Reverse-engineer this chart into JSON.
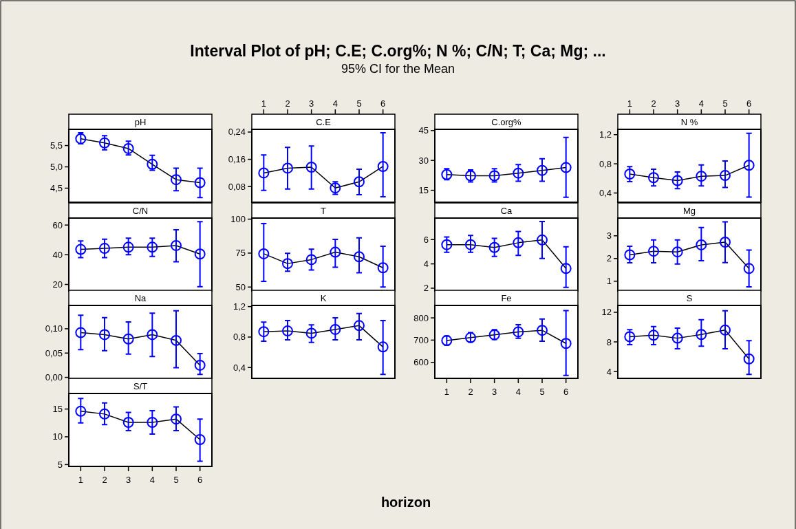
{
  "chart_data": [
    {
      "type": "other",
      "title": "Interval Plot of pH; C.E; C.org%; N %; C/N; T; Ca; Mg; ...",
      "subtitle": "95% CI for the Mean",
      "xlabel": "horizon"
    },
    {
      "type": "line",
      "title": "pH",
      "x": [
        1,
        2,
        3,
        4,
        5,
        6
      ],
      "xlim": [
        0.5,
        6.5
      ],
      "tick_labels": "y",
      "marker": "circle",
      "ylim": [
        4.17,
        5.88
      ],
      "yticks": [
        {
          "value": 4.5,
          "label": "4,5"
        },
        {
          "value": 5,
          "label": "5,0"
        },
        {
          "value": 5.5,
          "label": "5,5"
        }
      ],
      "series": [
        {
          "color": "#0000ff",
          "values": [
            5.66,
            5.56,
            5.43,
            5.06,
            4.7,
            4.63
          ],
          "errors": [
            [
              5.54,
              5.8
            ],
            [
              5.4,
              5.73
            ],
            [
              5.28,
              5.6
            ],
            [
              4.92,
              5.27
            ],
            [
              4.44,
              4.97
            ],
            [
              4.28,
              4.97
            ]
          ]
        }
      ]
    },
    {
      "type": "line",
      "title": "C.E",
      "x": [
        1,
        2,
        3,
        4,
        5,
        6
      ],
      "xlim": [
        0.5,
        6.5
      ],
      "x2lim": [
        0.5,
        6.5
      ],
      "x2ticks": [
        1,
        2,
        3,
        4,
        5,
        6
      ],
      "tick_labels": "y",
      "marker": "circle",
      "ylim": [
        0.034,
        0.248
      ],
      "yticks": [
        {
          "value": 0.08,
          "label": "0,08"
        },
        {
          "value": 0.16,
          "label": "0,16"
        },
        {
          "value": 0.24,
          "label": "0,24"
        }
      ],
      "series": [
        {
          "color": "#0000ff",
          "values": [
            0.12,
            0.134,
            0.137,
            0.076,
            0.094,
            0.139
          ],
          "errors": [
            [
              0.069,
              0.173
            ],
            [
              0.073,
              0.195
            ],
            [
              0.073,
              0.199
            ],
            [
              0.057,
              0.094
            ],
            [
              0.056,
              0.131
            ],
            [
              0.05,
              0.238
            ]
          ]
        }
      ]
    },
    {
      "type": "line",
      "title": "C.org%",
      "x": [
        1,
        2,
        3,
        4,
        5,
        6
      ],
      "xlim": [
        0.5,
        6.5
      ],
      "tick_labels": "y",
      "marker": "circle",
      "ylim": [
        9,
        45.6
      ],
      "yticks": [
        15,
        30,
        45
      ],
      "series": [
        {
          "color": "#0000ff",
          "values": [
            22.9,
            22.3,
            22.3,
            23.6,
            25.0,
            26.4
          ],
          "errors": [
            [
              20.3,
              25.8
            ],
            [
              19.2,
              25.2
            ],
            [
              19.2,
              25.8
            ],
            [
              19.5,
              27.9
            ],
            [
              19.5,
              30.8
            ],
            [
              11.5,
              41.5
            ]
          ]
        }
      ]
    },
    {
      "type": "line",
      "title": "N %",
      "x": [
        1,
        2,
        3,
        4,
        5,
        6
      ],
      "xlim": [
        0.5,
        6.5
      ],
      "x2lim": [
        0.5,
        6.5
      ],
      "x2ticks": [
        1,
        2,
        3,
        4,
        5,
        6
      ],
      "tick_labels": "y",
      "marker": "circle",
      "ylim": [
        0.273,
        1.273
      ],
      "yticks": [
        {
          "value": 0.4,
          "label": "0,4"
        },
        {
          "value": 0.8,
          "label": "0,8"
        },
        {
          "value": 1.2,
          "label": "1,2"
        }
      ],
      "series": [
        {
          "color": "#0000ff",
          "values": [
            0.66,
            0.61,
            0.57,
            0.63,
            0.64,
            0.78
          ],
          "errors": [
            [
              0.555,
              0.762
            ],
            [
              0.498,
              0.727
            ],
            [
              0.46,
              0.689
            ],
            [
              0.498,
              0.784
            ],
            [
              0.475,
              0.838
            ],
            [
              0.343,
              1.219
            ]
          ]
        }
      ]
    },
    {
      "type": "line",
      "title": "C/N",
      "x": [
        1,
        2,
        3,
        4,
        5,
        6
      ],
      "xlim": [
        0.5,
        6.5
      ],
      "tick_labels": "y",
      "marker": "circle",
      "ylim": [
        15.6,
        64.7
      ],
      "yticks": [
        20,
        40,
        60
      ],
      "series": [
        {
          "color": "#0000ff",
          "values": [
            43.6,
            44.3,
            45.1,
            45.1,
            46.2,
            40.5
          ],
          "errors": [
            [
              38.1,
              49.3
            ],
            [
              38.1,
              50.4
            ],
            [
              40,
              51.2
            ],
            [
              38.9,
              51.2
            ],
            [
              35.3,
              56.8
            ],
            [
              18.5,
              62.3
            ]
          ]
        }
      ]
    },
    {
      "type": "line",
      "title": "T",
      "x": [
        1,
        2,
        3,
        4,
        5,
        6
      ],
      "xlim": [
        0.5,
        6.5
      ],
      "tick_labels": "y",
      "marker": "circle",
      "ylim": [
        47.1,
        100.8
      ],
      "yticks": [
        50,
        75,
        100
      ],
      "series": [
        {
          "color": "#0000ff",
          "values": [
            74.5,
            67.3,
            70.2,
            75.7,
            72.3,
            64.2
          ],
          "errors": [
            [
              54.2,
              96.7
            ],
            [
              61.7,
              74.8
            ],
            [
              62.6,
              77.9
            ],
            [
              64.6,
              85.1
            ],
            [
              60.5,
              86.2
            ],
            [
              50,
              80
            ]
          ]
        }
      ]
    },
    {
      "type": "line",
      "title": "Ca",
      "x": [
        1,
        2,
        3,
        4,
        5,
        6
      ],
      "xlim": [
        0.5,
        6.5
      ],
      "tick_labels": "y",
      "marker": "circle",
      "ylim": [
        1.77,
        7.77
      ],
      "yticks": [
        2,
        4,
        6
      ],
      "series": [
        {
          "color": "#0000ff",
          "values": [
            5.58,
            5.58,
            5.35,
            5.74,
            5.97,
            3.62
          ],
          "errors": [
            [
              4.95,
              6.21
            ],
            [
              4.95,
              6.34
            ],
            [
              4.61,
              6.1
            ],
            [
              4.7,
              6.66
            ],
            [
              4.45,
              7.49
            ],
            [
              2.07,
              5.4
            ]
          ]
        }
      ]
    },
    {
      "type": "line",
      "title": "Mg",
      "x": [
        1,
        2,
        3,
        4,
        5,
        6
      ],
      "xlim": [
        0.5,
        6.5
      ],
      "tick_labels": "y",
      "marker": "circle",
      "ylim": [
        0.57,
        3.78
      ],
      "yticks": [
        1,
        2,
        3
      ],
      "series": [
        {
          "color": "#0000ff",
          "values": [
            2.16,
            2.32,
            2.29,
            2.6,
            2.72,
            1.56
          ],
          "errors": [
            [
              1.81,
              2.54
            ],
            [
              1.81,
              2.82
            ],
            [
              1.76,
              2.82
            ],
            [
              1.9,
              3.36
            ],
            [
              1.82,
              3.61
            ],
            [
              0.75,
              2.37
            ]
          ]
        }
      ]
    },
    {
      "type": "line",
      "title": "Na",
      "x": [
        1,
        2,
        3,
        4,
        5,
        6
      ],
      "xlim": [
        0.5,
        6.5
      ],
      "tick_labels": "y",
      "marker": "circle",
      "ylim": [
        -0.002,
        0.148
      ],
      "yticks": [
        {
          "value": 0,
          "label": "0,00"
        },
        {
          "value": 0.05,
          "label": "0,05"
        },
        {
          "value": 0.1,
          "label": "0,10"
        }
      ],
      "series": [
        {
          "color": "#0000ff",
          "values": [
            0.092,
            0.088,
            0.079,
            0.088,
            0.076,
            0.025
          ],
          "errors": [
            [
              0.057,
              0.128
            ],
            [
              0.055,
              0.123
            ],
            [
              0.048,
              0.114
            ],
            [
              0.043,
              0.132
            ],
            [
              0.02,
              0.137
            ],
            [
              0.006,
              0.049
            ]
          ]
        }
      ]
    },
    {
      "type": "line",
      "title": "K",
      "x": [
        1,
        2,
        3,
        4,
        5,
        6
      ],
      "xlim": [
        0.5,
        6.5
      ],
      "tick_labels": "y",
      "marker": "circle",
      "ylim": [
        0.258,
        1.215
      ],
      "yticks": [
        {
          "value": 0.4,
          "label": "0,4"
        },
        {
          "value": 0.8,
          "label": "0,8"
        },
        {
          "value": 1.2,
          "label": "1,2"
        }
      ],
      "series": [
        {
          "color": "#0000ff",
          "values": [
            0.87,
            0.88,
            0.85,
            0.9,
            0.95,
            0.67
          ],
          "errors": [
            [
              0.746,
              0.996
            ],
            [
              0.764,
              1.017
            ],
            [
              0.73,
              0.96
            ],
            [
              0.764,
              1.052
            ],
            [
              0.764,
              1.109
            ],
            [
              0.31,
              1.017
            ]
          ]
        }
      ]
    },
    {
      "type": "line",
      "title": "Fe",
      "x": [
        1,
        2,
        3,
        4,
        5,
        6
      ],
      "xlim": [
        0.5,
        6.5
      ],
      "xticks": [
        1,
        2,
        3,
        4,
        5,
        6
      ],
      "marker": "circle",
      "ylim": [
        528,
        856
      ],
      "yticks": [
        600,
        700,
        800
      ],
      "series": [
        {
          "color": "#0000ff",
          "values": [
            698,
            711,
            724,
            737,
            744,
            685
          ],
          "errors": [
            [
              677,
              718
            ],
            [
              691,
              734
            ],
            [
              703,
              747
            ],
            [
              708,
              769
            ],
            [
              695,
              795
            ],
            [
              541,
              833
            ]
          ]
        }
      ]
    },
    {
      "type": "line",
      "title": "S",
      "x": [
        1,
        2,
        3,
        4,
        5,
        6
      ],
      "xlim": [
        0.5,
        6.5
      ],
      "tick_labels": "y",
      "marker": "circle",
      "ylim": [
        3.07,
        12.93
      ],
      "yticks": [
        4,
        8,
        12
      ],
      "series": [
        {
          "color": "#0000ff",
          "values": [
            8.7,
            8.9,
            8.5,
            9.0,
            9.6,
            5.7
          ],
          "errors": [
            [
              7.63,
              9.65
            ],
            [
              7.63,
              10.06
            ],
            [
              7.07,
              9.87
            ],
            [
              7.41,
              11.0
            ],
            [
              7.07,
              12.2
            ],
            [
              3.6,
              8.16
            ]
          ]
        }
      ]
    },
    {
      "type": "line",
      "title": "S/T",
      "x": [
        1,
        2,
        3,
        4,
        5,
        6
      ],
      "xlim": [
        0.5,
        6.5
      ],
      "xticks": [
        1,
        2,
        3,
        4,
        5,
        6
      ],
      "marker": "circle",
      "ylim": [
        4.67,
        17.8
      ],
      "yticks": [
        5,
        10,
        15
      ],
      "series": [
        {
          "color": "#0000ff",
          "values": [
            14.6,
            14.1,
            12.6,
            12.6,
            13.2,
            9.5
          ],
          "errors": [
            [
              12.5,
              16.9
            ],
            [
              12.2,
              16.1
            ],
            [
              11.1,
              14.4
            ],
            [
              10.5,
              14.7
            ],
            [
              11.1,
              15.4
            ],
            [
              5.6,
              13.2
            ]
          ]
        }
      ]
    }
  ]
}
